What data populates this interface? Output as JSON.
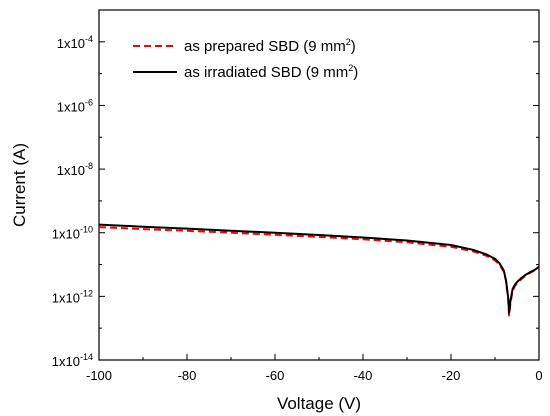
{
  "chart_data": {
    "type": "line",
    "title": "",
    "xlabel": "Voltage (V)",
    "ylabel": "Current (A)",
    "xlim": [
      -100,
      0
    ],
    "ylim": [
      1e-14,
      0.001
    ],
    "yscale": "log",
    "grid": false,
    "legend_position": "top-left",
    "x_ticks": [
      {
        "value": -100,
        "label": "-100"
      },
      {
        "value": -80,
        "label": "-80"
      },
      {
        "value": -60,
        "label": "-60"
      },
      {
        "value": -40,
        "label": "-40"
      },
      {
        "value": -20,
        "label": "-20"
      },
      {
        "value": 0,
        "label": "0"
      }
    ],
    "y_ticks": [
      {
        "value": 1e-14,
        "base": "1x10",
        "exp": "-14"
      },
      {
        "value": 1e-12,
        "base": "1x10",
        "exp": "-12"
      },
      {
        "value": 1e-10,
        "base": "1x10",
        "exp": "-10"
      },
      {
        "value": 1e-08,
        "base": "1x10",
        "exp": "-8"
      },
      {
        "value": 1e-06,
        "base": "1x10",
        "exp": "-6"
      },
      {
        "value": 0.0001,
        "base": "1x10",
        "exp": "-4"
      }
    ],
    "series": [
      {
        "name": "as prepared SBD (9 mm²)",
        "label_main": "as prepared SBD (9 mm",
        "label_sup": "2",
        "label_end": ")",
        "color": "#ff0000",
        "dash": "dashed",
        "x": [
          -100,
          -90,
          -80,
          -70,
          -60,
          -50,
          -40,
          -30,
          -20,
          -15,
          -12,
          -10,
          -9,
          -8,
          -7.5,
          -7,
          -6.8,
          -6.5,
          -6,
          -5.5,
          -5,
          -4,
          -3,
          -2,
          -1,
          0
        ],
        "y": [
          1.5e-10,
          1.3e-10,
          1.15e-10,
          1e-10,
          8.6e-11,
          7.4e-11,
          6.2e-11,
          5e-11,
          3.6e-11,
          2.6e-11,
          1.9e-11,
          1.35e-11,
          1e-11,
          6e-12,
          3e-12,
          8e-13,
          2.5e-13,
          6e-13,
          1.5e-12,
          2.1e-12,
          2.6e-12,
          3.5e-12,
          4.5e-12,
          5.5e-12,
          6.5e-12,
          8e-12
        ]
      },
      {
        "name": "as irradiated SBD (9 mm²)",
        "label_main": "as irradiated SBD (9 mm",
        "label_sup": "2",
        "label_end": ")",
        "color": "#000000",
        "dash": "solid",
        "x": [
          -100,
          -90,
          -80,
          -70,
          -60,
          -50,
          -40,
          -30,
          -20,
          -15,
          -12,
          -10,
          -9,
          -8,
          -7.5,
          -7,
          -6.8,
          -6.5,
          -6,
          -5.5,
          -5,
          -4,
          -3,
          -2,
          -1,
          0
        ],
        "y": [
          1.8e-10,
          1.55e-10,
          1.35e-10,
          1.15e-10,
          1e-10,
          8.5e-11,
          7.1e-11,
          5.7e-11,
          4.1e-11,
          2.9e-11,
          2.1e-11,
          1.5e-11,
          1.1e-11,
          6.5e-12,
          3.2e-12,
          9e-13,
          3e-13,
          7e-13,
          1.7e-12,
          2.3e-12,
          2.8e-12,
          3.8e-12,
          4.8e-12,
          5.8e-12,
          6.8e-12,
          8.5e-12
        ]
      }
    ]
  }
}
